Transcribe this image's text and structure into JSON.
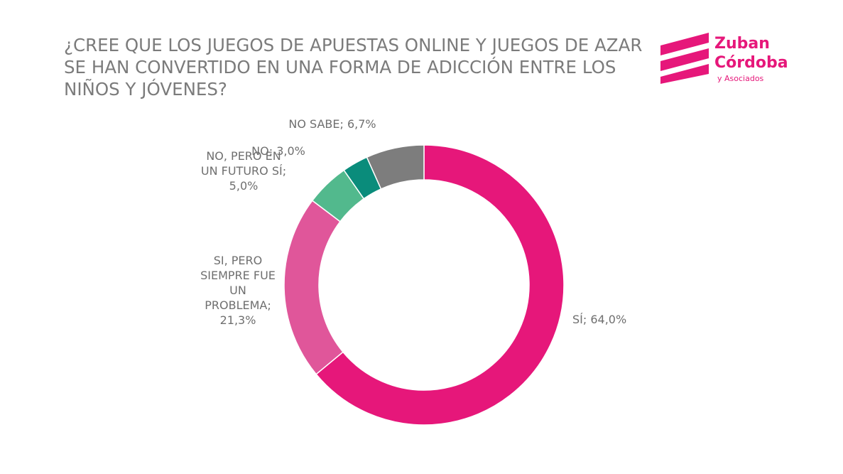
{
  "title": "¿CREE QUE LOS JUEGOS DE APUESTAS ONLINE Y JUEGOS DE AZAR\nSE HAN CONVERTIDO EN UNA FORMA DE ADICCIÓN ENTRE LOS\nNIÑOS Y JÓVENES?",
  "logo": {
    "line1": "Zuban",
    "line2": "Córdoba",
    "line3": "y Asociados",
    "color": "#e6177a"
  },
  "chart_data": {
    "type": "pie",
    "variant": "donut",
    "title": "¿CREE QUE LOS JUEGOS DE APUESTAS ONLINE Y JUEGOS DE AZAR SE HAN CONVERTIDO EN UNA FORMA DE ADICCIÓN ENTRE LOS NIÑOS Y JÓVENES?",
    "slices": [
      {
        "category": "SÍ",
        "value": 64.0,
        "label_lines": [
          "SÍ; 64,0%"
        ],
        "color": "#e6177a"
      },
      {
        "category": "SI, PERO SIEMPRE FUE UN PROBLEMA",
        "value": 21.3,
        "label_lines": [
          "SI, PERO",
          "SIEMPRE FUE",
          "UN",
          "PROBLEMA;",
          "21,3%"
        ],
        "color": "#e0569a"
      },
      {
        "category": "NO, PERO EN UN FUTURO SÍ",
        "value": 5.0,
        "label_lines": [
          "NO, PERO EN",
          "UN FUTURO SÍ;",
          "5,0%"
        ],
        "color": "#52b98d"
      },
      {
        "category": "NO",
        "value": 3.0,
        "label_lines": [
          "NO; 3,0%"
        ],
        "color": "#0a8c7b"
      },
      {
        "category": "NO SABE",
        "value": 6.7,
        "label_lines": [
          "NO SABE; 6,7%"
        ],
        "color": "#7d7d7d"
      }
    ],
    "start": "top",
    "direction": "clockwise",
    "legend": "none"
  }
}
